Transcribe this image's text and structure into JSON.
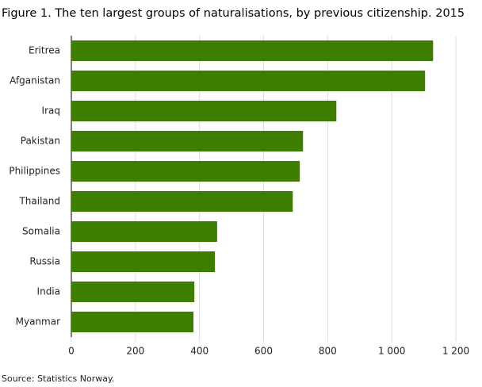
{
  "chart_data": {
    "type": "bar",
    "orientation": "horizontal",
    "title": "Figure 1. The ten largest groups of naturalisations, by previous citizenship. 2015",
    "categories": [
      "Eritrea",
      "Afganistan",
      "Iraq",
      "Pakistan",
      "Philippines",
      "Thailand",
      "Somalia",
      "Russia",
      "India",
      "Myanmar"
    ],
    "values": [
      1129,
      1104,
      827,
      723,
      713,
      691,
      455,
      448,
      384,
      381
    ],
    "color": "#3d7d00",
    "xlim": [
      0,
      1200
    ],
    "xticks": [
      0,
      200,
      400,
      600,
      800,
      {
        "value": 1000,
        "label": "1 000"
      },
      {
        "value": 1200,
        "label": "1 200"
      }
    ],
    "grid": true,
    "source": "Source: Statistics Norway."
  }
}
